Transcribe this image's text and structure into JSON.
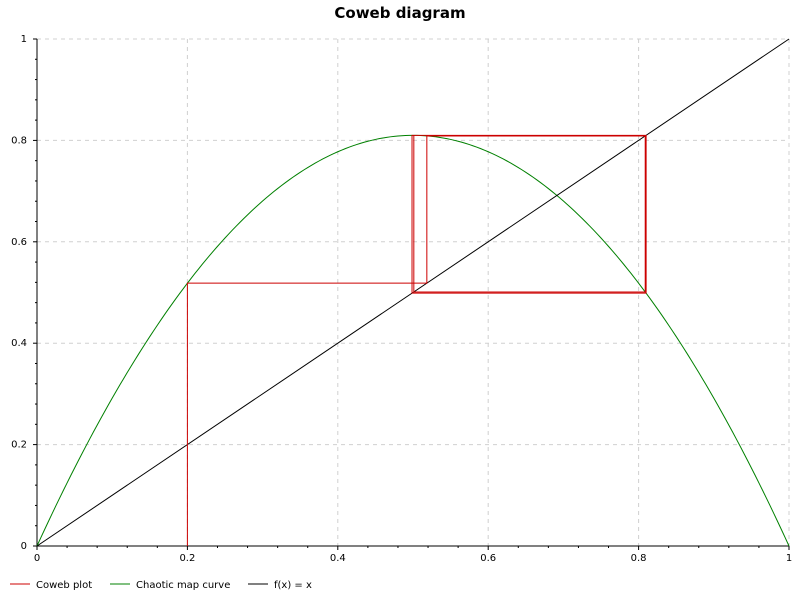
{
  "chart_data": {
    "type": "line",
    "title": "Coweb diagram",
    "xlabel": "",
    "ylabel": "",
    "xlim": [
      0,
      1
    ],
    "ylim": [
      0,
      1
    ],
    "x_ticks": [
      "0",
      "0.2",
      "0.4",
      "0.6",
      "0.8",
      "1"
    ],
    "y_ticks": [
      "0",
      "0.2",
      "0.4",
      "0.6",
      "0.8",
      "1"
    ],
    "grid": true,
    "legend_position": "bottom-left",
    "map": {
      "r": 3.24
    },
    "series": [
      {
        "name": "Coweb plot",
        "color": "#cc0000",
        "points": [
          [
            0.2,
            0.0
          ],
          [
            0.2,
            0.5184
          ],
          [
            0.5184,
            0.5184
          ],
          [
            0.5184,
            0.8088
          ],
          [
            0.8088,
            0.8088
          ],
          [
            0.8088,
            0.5011
          ],
          [
            0.5011,
            0.5011
          ],
          [
            0.5011,
            0.81
          ],
          [
            0.81,
            0.81
          ],
          [
            0.81,
            0.4987
          ],
          [
            0.4987,
            0.4987
          ],
          [
            0.4987,
            0.81
          ],
          [
            0.81,
            0.81
          ],
          [
            0.81,
            0.4987
          ],
          [
            0.4987,
            0.4987
          ],
          [
            0.4987,
            0.81
          ],
          [
            0.81,
            0.81
          ],
          [
            0.81,
            0.4987
          ],
          [
            0.4987,
            0.4987
          ]
        ]
      },
      {
        "name": "Chaotic map curve",
        "color": "#008000",
        "function": "r*x*(1-x)"
      },
      {
        "name": "f(x) = x",
        "color": "#000000",
        "points": [
          [
            0,
            0
          ],
          [
            1,
            1
          ]
        ]
      }
    ]
  }
}
